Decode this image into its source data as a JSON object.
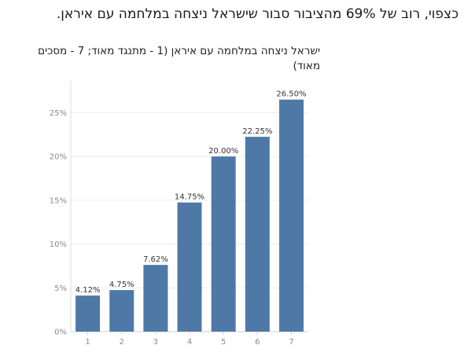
{
  "headline": "כצפוי, רוב של 69% מהציבור סבור שישראל ניצחה במלחמה עם איראן.",
  "chart_data": {
    "type": "bar",
    "title": "ישראל ניצחה במלחמה עם איראן (1 - מתנגד מאוד; 7 - מסכים מאוד)",
    "categories": [
      "1",
      "2",
      "3",
      "4",
      "5",
      "6",
      "7"
    ],
    "values": [
      4.12,
      4.75,
      7.62,
      14.75,
      20.0,
      22.25,
      26.5
    ],
    "data_labels": [
      "4.12%",
      "4.75%",
      "7.62%",
      "14.75%",
      "20.00%",
      "22.25%",
      "26.50%"
    ],
    "y_ticks": [
      0,
      5,
      10,
      15,
      20,
      25
    ],
    "y_tick_labels": [
      "0%",
      "5%",
      "10%",
      "15%",
      "20%",
      "25%"
    ],
    "ylim": [
      0,
      28
    ],
    "grid": true,
    "bar_color": "#4e79a7"
  }
}
